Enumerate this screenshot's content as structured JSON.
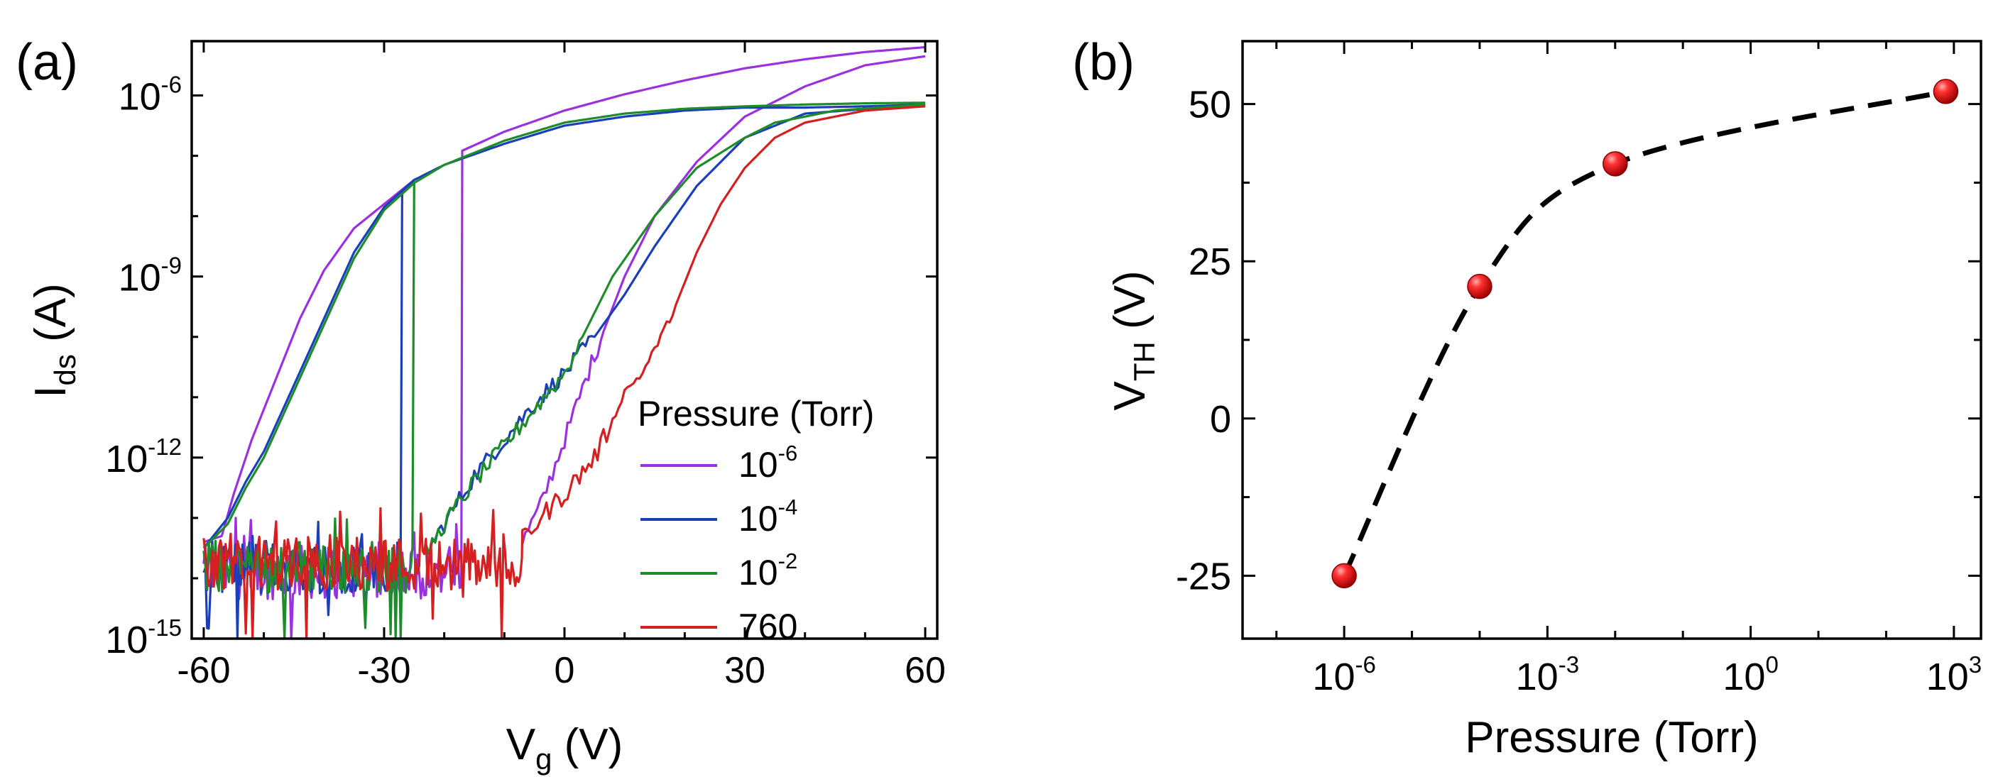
{
  "chart_data": [
    {
      "type": "line",
      "panel_label": "(a)",
      "xlabel_main": "V",
      "xlabel_sub": "g",
      "xlabel_unit": " (V)",
      "ylabel_main": "I",
      "ylabel_sub": "ds",
      "ylabel_unit": " (A)",
      "y_scale": "log",
      "xlim": [
        -62,
        62
      ],
      "ylim_exp": [
        -15,
        -5.1
      ],
      "x_ticks": [
        {
          "v": -60,
          "label": "-60"
        },
        {
          "v": -30,
          "label": "-30"
        },
        {
          "v": 0,
          "label": "0"
        },
        {
          "v": 30,
          "label": "30"
        },
        {
          "v": 60,
          "label": "60"
        }
      ],
      "y_ticks": [
        {
          "e": -6,
          "base": "10",
          "exp": "-6"
        },
        {
          "e": -9,
          "base": "10",
          "exp": "-9"
        },
        {
          "e": -12,
          "base": "10",
          "exp": "-12"
        },
        {
          "e": -15,
          "base": "10",
          "exp": "-15"
        }
      ],
      "legend_title": "Pressure (Torr)",
      "legend_position": "bottom-right",
      "series": [
        {
          "name_base": "10",
          "name_exp": "-6",
          "color": "#9b30e0",
          "forward": [
            [
              -60,
              -13.4
            ],
            [
              -57,
              -13.3
            ],
            [
              -55,
              -12.6
            ],
            [
              -52,
              -11.7
            ],
            [
              -48,
              -10.7
            ],
            [
              -44,
              -9.7
            ],
            [
              -40,
              -8.9
            ],
            [
              -35,
              -8.2
            ],
            [
              -30,
              -7.8
            ],
            [
              -25,
              -7.4
            ],
            [
              -20,
              -7.05
            ],
            [
              -10,
              -6.6
            ],
            [
              0,
              -6.25
            ],
            [
              10,
              -5.98
            ],
            [
              20,
              -5.75
            ],
            [
              30,
              -5.55
            ],
            [
              40,
              -5.4
            ],
            [
              50,
              -5.28
            ],
            [
              60,
              -5.2
            ]
          ],
          "noise_start": -60,
          "noise_end": -17,
          "noise_level": -13.9,
          "reverse": [
            [
              60,
              -5.35
            ],
            [
              50,
              -5.5
            ],
            [
              40,
              -5.85
            ],
            [
              30,
              -6.35
            ],
            [
              22,
              -7.1
            ],
            [
              15,
              -8.0
            ],
            [
              10,
              -9.0
            ],
            [
              5,
              -10.3
            ],
            [
              0,
              -11.7
            ],
            [
              -4,
              -12.8
            ],
            [
              -7,
              -13.4
            ]
          ]
        },
        {
          "name_base": "10",
          "name_exp": "-4",
          "color": "#1a3fb8",
          "forward": [
            [
              -60,
              -13.5
            ],
            [
              -56,
              -13.0
            ],
            [
              -53,
              -12.4
            ],
            [
              -50,
              -11.9
            ],
            [
              -45,
              -10.8
            ],
            [
              -40,
              -9.7
            ],
            [
              -35,
              -8.6
            ],
            [
              -30,
              -7.85
            ],
            [
              -25,
              -7.4
            ],
            [
              -20,
              -7.15
            ],
            [
              -10,
              -6.8
            ],
            [
              0,
              -6.5
            ],
            [
              10,
              -6.35
            ],
            [
              20,
              -6.25
            ],
            [
              30,
              -6.2
            ],
            [
              40,
              -6.2
            ],
            [
              50,
              -6.18
            ],
            [
              60,
              -6.15
            ]
          ],
          "noise_start": -60,
          "noise_end": -27,
          "noise_level": -13.8,
          "reverse": [
            [
              60,
              -6.15
            ],
            [
              40,
              -6.3
            ],
            [
              30,
              -6.7
            ],
            [
              22,
              -7.5
            ],
            [
              15,
              -8.5
            ],
            [
              10,
              -9.3
            ],
            [
              5,
              -10.0
            ],
            [
              0,
              -10.6
            ],
            [
              -5,
              -11.1
            ],
            [
              -10,
              -11.7
            ],
            [
              -15,
              -12.3
            ],
            [
              -20,
              -13.1
            ],
            [
              -23,
              -13.6
            ]
          ]
        },
        {
          "name_base": "10",
          "name_exp": "-2",
          "color": "#1e8c2a",
          "forward": [
            [
              -60,
              -13.5
            ],
            [
              -56,
              -13.1
            ],
            [
              -53,
              -12.5
            ],
            [
              -50,
              -12.0
            ],
            [
              -45,
              -10.9
            ],
            [
              -40,
              -9.8
            ],
            [
              -35,
              -8.7
            ],
            [
              -30,
              -7.9
            ],
            [
              -25,
              -7.45
            ],
            [
              -20,
              -7.15
            ],
            [
              -10,
              -6.75
            ],
            [
              0,
              -6.45
            ],
            [
              10,
              -6.3
            ],
            [
              20,
              -6.22
            ],
            [
              30,
              -6.18
            ],
            [
              40,
              -6.15
            ],
            [
              50,
              -6.13
            ],
            [
              60,
              -6.12
            ]
          ],
          "noise_start": -60,
          "noise_end": -25,
          "noise_level": -13.8,
          "reverse": [
            [
              60,
              -6.15
            ],
            [
              45,
              -6.25
            ],
            [
              35,
              -6.45
            ],
            [
              30,
              -6.7
            ],
            [
              22,
              -7.2
            ],
            [
              15,
              -8.0
            ],
            [
              8,
              -9.0
            ],
            [
              3,
              -10.0
            ],
            [
              0,
              -10.6
            ],
            [
              -5,
              -11.2
            ],
            [
              -10,
              -11.8
            ],
            [
              -15,
              -12.4
            ],
            [
              -20,
              -13.1
            ],
            [
              -23,
              -13.6
            ]
          ]
        },
        {
          "name_base": "760",
          "name_exp": "",
          "color": "#d42020",
          "forward": [
            [
              -60,
              -13.6
            ],
            [
              -20,
              -13.7
            ],
            [
              -12,
              -13.6
            ],
            [
              -8,
              -13.5
            ],
            [
              -4,
              -13.0
            ],
            [
              0,
              -12.6
            ],
            [
              5,
              -12.0
            ],
            [
              8,
              -11.4
            ],
            [
              10,
              -10.9
            ],
            [
              13,
              -10.6
            ],
            [
              15,
              -10.2
            ],
            [
              18,
              -9.6
            ],
            [
              22,
              -8.6
            ],
            [
              26,
              -7.8
            ],
            [
              30,
              -7.2
            ],
            [
              35,
              -6.7
            ],
            [
              40,
              -6.45
            ],
            [
              50,
              -6.25
            ],
            [
              60,
              -6.18
            ]
          ],
          "noise_start": -60,
          "noise_end": -7,
          "noise_level": -13.75,
          "reverse": []
        }
      ]
    },
    {
      "type": "scatter",
      "panel_label": "(b)",
      "xlabel": "Pressure (Torr)",
      "ylabel_main": "V",
      "ylabel_sub": "TH",
      "ylabel_unit": " (V)",
      "x_scale": "log",
      "xlim_exp": [
        -7.5,
        3.4
      ],
      "ylim": [
        -35,
        60
      ],
      "x_ticks": [
        {
          "e": -6,
          "base": "10",
          "exp": "-6"
        },
        {
          "e": -3,
          "base": "10",
          "exp": "-3"
        },
        {
          "e": 0,
          "base": "10",
          "exp": "0"
        },
        {
          "e": 3,
          "base": "10",
          "exp": "3"
        }
      ],
      "y_ticks": [
        {
          "v": 50,
          "label": "50"
        },
        {
          "v": 25,
          "label": "25"
        },
        {
          "v": 0,
          "label": "0"
        },
        {
          "v": -25,
          "label": "-25"
        }
      ],
      "points": [
        {
          "x_exp": -6,
          "y": -25
        },
        {
          "x_exp": -4,
          "y": 21
        },
        {
          "x_exp": -2,
          "y": 40.5
        },
        {
          "x_exp": 2.88,
          "y": 52
        }
      ],
      "marker_color": "#e41a1a",
      "fit_line_style": "dashed"
    }
  ]
}
